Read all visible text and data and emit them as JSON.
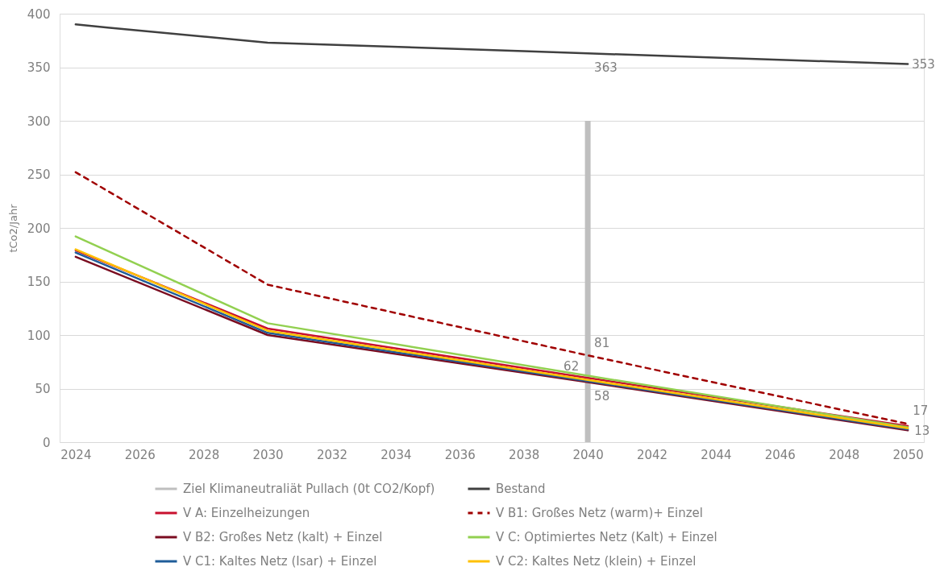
{
  "chart_data": {
    "type": "line",
    "ylabel": "tCo2/Jahr",
    "x": [
      2024,
      2030,
      2040,
      2050
    ],
    "xlim": [
      2023.5,
      2050.5
    ],
    "xticks": [
      2024,
      2026,
      2028,
      2030,
      2032,
      2034,
      2036,
      2038,
      2040,
      2042,
      2044,
      2046,
      2048,
      2050
    ],
    "ylim": [
      0,
      400
    ],
    "yticks": [
      0,
      50,
      100,
      150,
      200,
      250,
      300,
      350,
      400
    ],
    "grid": "y",
    "legend": "bottom",
    "series": [
      {
        "name": "Ziel Klimaneutraliät Pullach (0t CO2/Kopf)",
        "type": "bar",
        "x": [
          2040
        ],
        "values": [
          300
        ],
        "color": "#bfbfbf"
      },
      {
        "name": "Bestand",
        "x": [
          2024,
          2025,
          2030,
          2038,
          2040,
          2050
        ],
        "values": [
          390,
          387,
          373,
          365,
          363,
          353
        ],
        "color": "#404040",
        "value_labels": [
          null,
          null,
          null,
          null,
          "363",
          "353"
        ]
      },
      {
        "name": "V A: Einzelheizungen",
        "values": [
          179,
          106,
          60,
          15
        ],
        "color": "#c8102e"
      },
      {
        "name": "V B1: Großes Netz (warm)+ Einzel",
        "values": [
          252,
          147,
          81,
          17
        ],
        "color": "#a00000",
        "line_style": "dashed",
        "value_labels": [
          null,
          null,
          "81",
          "17"
        ]
      },
      {
        "name": "V B2: Großes Netz (kalt) + Einzel",
        "values": [
          173,
          100,
          56,
          11
        ],
        "color": "#7a0c20"
      },
      {
        "name": "V C: Optimiertes Netz (Kalt) + Einzel",
        "values": [
          192,
          111,
          62,
          14
        ],
        "color": "#92d050",
        "value_labels": [
          null,
          null,
          "62",
          null
        ]
      },
      {
        "name": "V C1: Kaltes Netz (Isar) + Einzel",
        "values": [
          177,
          102,
          57,
          12
        ],
        "color": "#1f5c99"
      },
      {
        "name": "V C2: Kaltes Netz (klein) + Einzel",
        "values": [
          180,
          104,
          58,
          13
        ],
        "color": "#ffc000",
        "value_labels": [
          null,
          null,
          "58",
          "13"
        ]
      }
    ]
  }
}
